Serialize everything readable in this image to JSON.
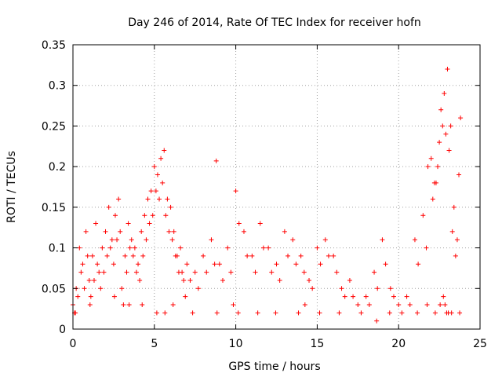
{
  "chart_data": {
    "type": "scatter",
    "title": "Day 246 of 2014, Rate Of TEC Index for receiver hofn",
    "xlabel": "GPS time / hours",
    "ylabel": "ROTI / TECUs",
    "xlim": [
      0,
      25
    ],
    "ylim": [
      0,
      0.35
    ],
    "xticks": [
      0,
      5,
      10,
      15,
      20,
      25
    ],
    "xtick_labels": [
      "0",
      "5",
      "10",
      "15",
      "20",
      "25"
    ],
    "yticks": [
      0,
      0.05,
      0.1,
      0.15,
      0.2,
      0.25,
      0.3,
      0.35
    ],
    "ytick_labels": [
      "0",
      "0.05",
      "0.1",
      "0.15",
      "0.2",
      "0.25",
      "0.3",
      "0.35"
    ],
    "grid": true,
    "marker": "+",
    "color": "#ff0000",
    "series": [
      {
        "name": "ROTI",
        "x": [
          0.0,
          0.2,
          0.4,
          0.6,
          0.8,
          1.0,
          1.2,
          1.4,
          1.6,
          1.8,
          2.0,
          2.2,
          2.4,
          2.6,
          2.8,
          3.0,
          3.2,
          3.4,
          3.6,
          3.8,
          4.0,
          4.2,
          4.4,
          4.6,
          4.8,
          5.0,
          5.2,
          5.4,
          5.6,
          5.8,
          6.0,
          6.2,
          6.4,
          6.6,
          6.8,
          7.0,
          7.5,
          8.0,
          8.5,
          8.8,
          9.0,
          9.5,
          10.0,
          10.5,
          11.0,
          11.5,
          12.0,
          12.5,
          13.0,
          13.5,
          14.0,
          14.5,
          15.0,
          15.5,
          16.0,
          16.5,
          17.0,
          17.5,
          18.0,
          18.5,
          19.0,
          19.5,
          20.0,
          20.5,
          21.0,
          21.5,
          21.8,
          22.0,
          22.2,
          22.4,
          22.6,
          22.8,
          23.0,
          23.2,
          23.4,
          23.6,
          23.8,
          0.1,
          0.3,
          0.5,
          0.7,
          0.9,
          1.1,
          1.3,
          1.5,
          1.7,
          1.9,
          2.1,
          2.3,
          2.5,
          2.7,
          2.9,
          3.1,
          3.3,
          3.5,
          3.7,
          3.9,
          4.1,
          4.3,
          4.5,
          4.7,
          4.9,
          5.1,
          5.3,
          5.5,
          5.7,
          5.9,
          6.1,
          6.3,
          6.5,
          6.7,
          6.9,
          7.2,
          7.7,
          8.2,
          8.7,
          9.2,
          9.7,
          10.2,
          10.7,
          11.2,
          11.7,
          12.2,
          12.7,
          13.2,
          13.7,
          14.2,
          14.7,
          15.2,
          15.7,
          16.2,
          16.7,
          17.2,
          17.7,
          18.2,
          18.7,
          19.2,
          19.7,
          20.2,
          20.7,
          21.2,
          21.7,
          22.1,
          22.3,
          22.5,
          22.7,
          22.9,
          23.1,
          23.3,
          23.5,
          23.7,
          0.15,
          1.05,
          2.55,
          3.45,
          4.25,
          5.15,
          5.65,
          6.15,
          7.35,
          8.85,
          9.85,
          10.15,
          11.35,
          12.45,
          13.85,
          14.25,
          15.15,
          16.35,
          18.65,
          19.45,
          21.15,
          21.75,
          22.25,
          22.55,
          22.75,
          22.85,
          22.95,
          23.05,
          23.25,
          23.75
        ],
        "y": [
          0.03,
          0.05,
          0.1,
          0.08,
          0.12,
          0.06,
          0.09,
          0.13,
          0.07,
          0.1,
          0.12,
          0.15,
          0.11,
          0.14,
          0.16,
          0.05,
          0.09,
          0.13,
          0.11,
          0.1,
          0.08,
          0.12,
          0.14,
          0.16,
          0.17,
          0.2,
          0.19,
          0.21,
          0.22,
          0.16,
          0.15,
          0.12,
          0.09,
          0.1,
          0.06,
          0.08,
          0.07,
          0.09,
          0.11,
          0.207,
          0.08,
          0.1,
          0.17,
          0.12,
          0.09,
          0.13,
          0.1,
          0.08,
          0.12,
          0.11,
          0.09,
          0.06,
          0.1,
          0.11,
          0.09,
          0.05,
          0.06,
          0.03,
          0.04,
          0.07,
          0.11,
          0.05,
          0.03,
          0.04,
          0.11,
          0.14,
          0.2,
          0.21,
          0.18,
          0.2,
          0.27,
          0.29,
          0.32,
          0.25,
          0.15,
          0.11,
          0.26,
          0.02,
          0.04,
          0.07,
          0.05,
          0.09,
          0.04,
          0.06,
          0.08,
          0.05,
          0.07,
          0.09,
          0.1,
          0.08,
          0.11,
          0.12,
          0.03,
          0.07,
          0.1,
          0.09,
          0.07,
          0.06,
          0.09,
          0.11,
          0.13,
          0.14,
          0.17,
          0.16,
          0.18,
          0.14,
          0.12,
          0.11,
          0.09,
          0.07,
          0.07,
          0.04,
          0.06,
          0.05,
          0.07,
          0.08,
          0.06,
          0.07,
          0.13,
          0.09,
          0.07,
          0.1,
          0.07,
          0.06,
          0.09,
          0.08,
          0.07,
          0.05,
          0.08,
          0.09,
          0.07,
          0.04,
          0.04,
          0.02,
          0.03,
          0.05,
          0.08,
          0.04,
          0.02,
          0.03,
          0.08,
          0.1,
          0.16,
          0.18,
          0.23,
          0.25,
          0.24,
          0.22,
          0.12,
          0.09,
          0.19,
          0.02,
          0.03,
          0.04,
          0.03,
          0.03,
          0.02,
          0.02,
          0.03,
          0.02,
          0.02,
          0.03,
          0.02,
          0.02,
          0.02,
          0.02,
          0.03,
          0.02,
          0.02,
          0.01,
          0.02,
          0.02,
          0.03,
          0.02,
          0.03,
          0.04,
          0.03,
          0.02,
          0.02,
          0.02,
          0.02
        ]
      }
    ]
  }
}
